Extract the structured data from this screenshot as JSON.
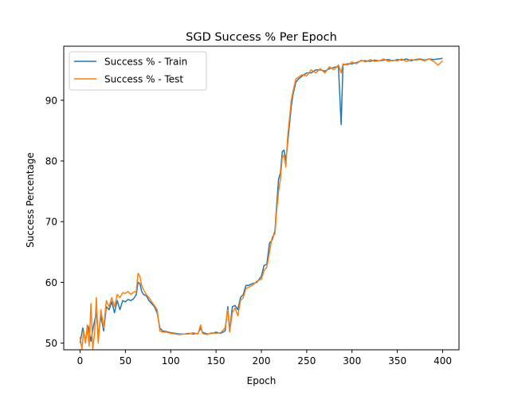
{
  "chart_data": {
    "type": "line",
    "title": "SGD Success % Per Epoch",
    "xlabel": "Epoch",
    "ylabel": "Success Percentage",
    "xlim": [
      -18,
      418
    ],
    "ylim": [
      48.9,
      98.9
    ],
    "xticks": [
      0,
      50,
      100,
      150,
      200,
      250,
      300,
      350,
      400
    ],
    "yticks": [
      50,
      60,
      70,
      80,
      90
    ],
    "grid": false,
    "legend_position": "top-left",
    "series": [
      {
        "name": "Success % - Train",
        "color": "#1f77b4",
        "points": [
          [
            0,
            50.0
          ],
          [
            3,
            52.5
          ],
          [
            6,
            50.5
          ],
          [
            9,
            52.8
          ],
          [
            12,
            50.3
          ],
          [
            15,
            53.0
          ],
          [
            18,
            55.0
          ],
          [
            20,
            51.0
          ],
          [
            23,
            54.5
          ],
          [
            26,
            52.0
          ],
          [
            29,
            56.0
          ],
          [
            32,
            55.5
          ],
          [
            35,
            56.8
          ],
          [
            38,
            55.0
          ],
          [
            41,
            57.0
          ],
          [
            44,
            55.5
          ],
          [
            47,
            57.0
          ],
          [
            50,
            56.8
          ],
          [
            53,
            57.2
          ],
          [
            56,
            57.0
          ],
          [
            59,
            57.3
          ],
          [
            62,
            58.0
          ],
          [
            64,
            60.0
          ],
          [
            66,
            59.8
          ],
          [
            68,
            58.5
          ],
          [
            70,
            58.0
          ],
          [
            73,
            57.8
          ],
          [
            76,
            57.0
          ],
          [
            79,
            56.5
          ],
          [
            82,
            56.0
          ],
          [
            85,
            55.0
          ],
          [
            88,
            52.5
          ],
          [
            91,
            52.0
          ],
          [
            95,
            51.9
          ],
          [
            100,
            51.7
          ],
          [
            105,
            51.6
          ],
          [
            110,
            51.5
          ],
          [
            115,
            51.5
          ],
          [
            120,
            51.6
          ],
          [
            125,
            51.5
          ],
          [
            130,
            51.6
          ],
          [
            133,
            52.5
          ],
          [
            135,
            51.8
          ],
          [
            140,
            51.5
          ],
          [
            145,
            51.6
          ],
          [
            150,
            51.8
          ],
          [
            155,
            51.6
          ],
          [
            160,
            52.0
          ],
          [
            163,
            56.0
          ],
          [
            165,
            52.0
          ],
          [
            168,
            56.0
          ],
          [
            171,
            56.2
          ],
          [
            174,
            55.5
          ],
          [
            177,
            57.5
          ],
          [
            180,
            58.0
          ],
          [
            183,
            59.5
          ],
          [
            186,
            59.5
          ],
          [
            190,
            59.8
          ],
          [
            195,
            60.0
          ],
          [
            200,
            61.0
          ],
          [
            203,
            62.8
          ],
          [
            206,
            63.0
          ],
          [
            209,
            66.5
          ],
          [
            212,
            67.0
          ],
          [
            215,
            68.5
          ],
          [
            217,
            73.0
          ],
          [
            219,
            77.0
          ],
          [
            221,
            78.0
          ],
          [
            223,
            81.5
          ],
          [
            225,
            81.8
          ],
          [
            227,
            80.0
          ],
          [
            229,
            83.0
          ],
          [
            231,
            86.0
          ],
          [
            233,
            89.0
          ],
          [
            235,
            91.0
          ],
          [
            238,
            93.0
          ],
          [
            241,
            93.5
          ],
          [
            245,
            94.0
          ],
          [
            250,
            94.5
          ],
          [
            255,
            94.5
          ],
          [
            260,
            95.0
          ],
          [
            265,
            95.0
          ],
          [
            270,
            94.8
          ],
          [
            275,
            95.2
          ],
          [
            280,
            95.4
          ],
          [
            285,
            95.6
          ],
          [
            288,
            86.0
          ],
          [
            290,
            95.8
          ],
          [
            295,
            96.0
          ],
          [
            300,
            96.0
          ],
          [
            305,
            96.2
          ],
          [
            310,
            96.5
          ],
          [
            315,
            96.5
          ],
          [
            320,
            96.4
          ],
          [
            325,
            96.6
          ],
          [
            330,
            96.5
          ],
          [
            335,
            96.6
          ],
          [
            340,
            96.7
          ],
          [
            345,
            96.5
          ],
          [
            350,
            96.7
          ],
          [
            355,
            96.6
          ],
          [
            360,
            96.8
          ],
          [
            365,
            96.5
          ],
          [
            370,
            96.7
          ],
          [
            375,
            96.8
          ],
          [
            380,
            96.6
          ],
          [
            385,
            96.8
          ],
          [
            390,
            96.7
          ],
          [
            395,
            96.8
          ],
          [
            400,
            96.9
          ]
        ]
      },
      {
        "name": "Success % - Test",
        "color": "#ff7f0e",
        "points": [
          [
            0,
            51.0
          ],
          [
            2,
            49.0
          ],
          [
            4,
            52.0
          ],
          [
            6,
            50.0
          ],
          [
            8,
            53.0
          ],
          [
            10,
            49.5
          ],
          [
            12,
            56.5
          ],
          [
            14,
            49.0
          ],
          [
            16,
            51.5
          ],
          [
            18,
            57.5
          ],
          [
            20,
            50.0
          ],
          [
            23,
            55.5
          ],
          [
            26,
            52.5
          ],
          [
            29,
            57.0
          ],
          [
            32,
            56.0
          ],
          [
            35,
            57.5
          ],
          [
            38,
            56.0
          ],
          [
            41,
            58.0
          ],
          [
            44,
            57.5
          ],
          [
            47,
            58.3
          ],
          [
            50,
            58.2
          ],
          [
            53,
            58.5
          ],
          [
            56,
            58.0
          ],
          [
            59,
            58.4
          ],
          [
            62,
            58.5
          ],
          [
            64,
            61.5
          ],
          [
            66,
            61.0
          ],
          [
            68,
            59.5
          ],
          [
            70,
            58.8
          ],
          [
            73,
            58.0
          ],
          [
            76,
            57.5
          ],
          [
            79,
            56.8
          ],
          [
            82,
            56.2
          ],
          [
            85,
            55.5
          ],
          [
            88,
            52.0
          ],
          [
            91,
            51.8
          ],
          [
            95,
            51.8
          ],
          [
            100,
            51.6
          ],
          [
            105,
            51.5
          ],
          [
            110,
            51.4
          ],
          [
            115,
            51.5
          ],
          [
            120,
            51.5
          ],
          [
            125,
            51.7
          ],
          [
            130,
            51.5
          ],
          [
            133,
            53.0
          ],
          [
            135,
            51.6
          ],
          [
            140,
            51.4
          ],
          [
            145,
            51.7
          ],
          [
            150,
            51.6
          ],
          [
            155,
            51.7
          ],
          [
            160,
            52.5
          ],
          [
            163,
            55.5
          ],
          [
            165,
            51.8
          ],
          [
            168,
            55.0
          ],
          [
            171,
            55.8
          ],
          [
            174,
            54.5
          ],
          [
            177,
            57.0
          ],
          [
            180,
            57.5
          ],
          [
            183,
            59.0
          ],
          [
            186,
            59.2
          ],
          [
            190,
            59.5
          ],
          [
            195,
            60.2
          ],
          [
            200,
            60.5
          ],
          [
            203,
            62.0
          ],
          [
            206,
            62.5
          ],
          [
            209,
            65.0
          ],
          [
            212,
            67.5
          ],
          [
            215,
            68.0
          ],
          [
            217,
            72.0
          ],
          [
            219,
            75.0
          ],
          [
            221,
            77.0
          ],
          [
            223,
            80.5
          ],
          [
            225,
            81.0
          ],
          [
            227,
            79.0
          ],
          [
            229,
            84.0
          ],
          [
            231,
            87.0
          ],
          [
            233,
            90.0
          ],
          [
            235,
            91.5
          ],
          [
            238,
            93.5
          ],
          [
            241,
            93.8
          ],
          [
            245,
            94.2
          ],
          [
            250,
            94.0
          ],
          [
            255,
            95.0
          ],
          [
            260,
            94.5
          ],
          [
            265,
            95.2
          ],
          [
            270,
            94.5
          ],
          [
            275,
            95.5
          ],
          [
            280,
            95.0
          ],
          [
            285,
            95.8
          ],
          [
            288,
            94.5
          ],
          [
            290,
            96.0
          ],
          [
            295,
            95.8
          ],
          [
            300,
            96.3
          ],
          [
            305,
            96.0
          ],
          [
            310,
            96.6
          ],
          [
            315,
            96.3
          ],
          [
            320,
            96.7
          ],
          [
            325,
            96.4
          ],
          [
            330,
            96.5
          ],
          [
            335,
            96.8
          ],
          [
            340,
            96.4
          ],
          [
            345,
            96.6
          ],
          [
            350,
            96.5
          ],
          [
            355,
            96.8
          ],
          [
            360,
            96.4
          ],
          [
            365,
            96.7
          ],
          [
            370,
            96.6
          ],
          [
            375,
            96.7
          ],
          [
            380,
            96.5
          ],
          [
            385,
            96.8
          ],
          [
            390,
            96.4
          ],
          [
            395,
            95.8
          ],
          [
            400,
            96.5
          ]
        ]
      }
    ]
  }
}
